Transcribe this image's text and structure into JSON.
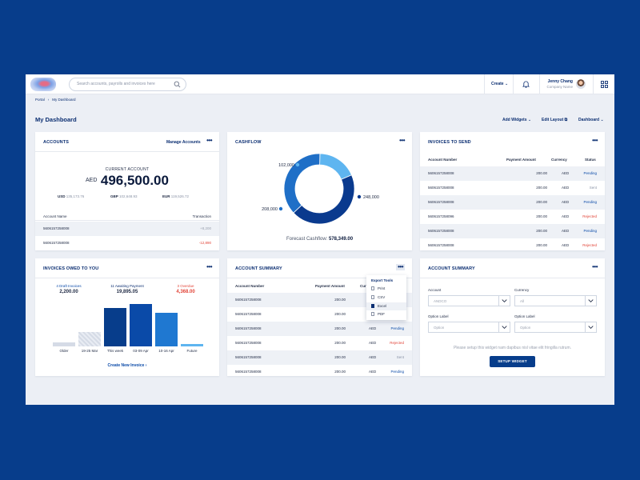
{
  "topbar": {
    "search_placeholder": "Search accounts, payrolls and invoices here",
    "create_label": "Create",
    "user_name": "Jenny Chang",
    "company_name": "Company Name"
  },
  "breadcrumb": [
    "Portal",
    "My Dashboard"
  ],
  "page": {
    "title": "My Dashboard",
    "actions": {
      "add_widgets": "Add Widgets",
      "edit_layout": "Edit Layout",
      "dashboard": "Dashboard"
    }
  },
  "accounts": {
    "title": "ACCOUNTS",
    "manage": "Manage Accounts",
    "current_label": "CURRENT ACCOUNT",
    "currency": "AED",
    "amount": "496,500.00",
    "fx": [
      {
        "cur": "USD",
        "val": "135,173.76"
      },
      {
        "cur": "GBP",
        "val": "102,648.93"
      },
      {
        "cur": "EUR",
        "val": "119,526.72"
      }
    ],
    "col_account": "Account Name",
    "col_transaction": "Transaction",
    "rows": [
      {
        "name": "5606157258008",
        "value": "+8,200"
      },
      {
        "name": "5606157258008",
        "value": "-12,890"
      }
    ]
  },
  "cashflow": {
    "title": "CASHFLOW",
    "forecast_label": "Forecast Cashflow:",
    "forecast_value": "578,349.00",
    "chart_data": {
      "type": "pie",
      "title": "CASHFLOW",
      "categories": [
        "102,000",
        "248,000",
        "208,000"
      ],
      "values": [
        102000,
        248000,
        208000
      ],
      "colors": [
        "#5eb5f0",
        "#0a3a8e",
        "#1f6fc7"
      ]
    }
  },
  "invoices_send": {
    "title": "INVOICES TO SEND",
    "cols": [
      "Account Number",
      "Payment Amount",
      "Currency",
      "Status"
    ],
    "rows": [
      {
        "acct": "5606157258008",
        "amt": "200.00",
        "cur": "AED",
        "status": "Pending"
      },
      {
        "acct": "5606157258008",
        "amt": "200.00",
        "cur": "AED",
        "status": "Sent"
      },
      {
        "acct": "5606157258008",
        "amt": "200.00",
        "cur": "AED",
        "status": "Pending"
      },
      {
        "acct": "5606157258096",
        "amt": "200.00",
        "cur": "AED",
        "status": "Rejected"
      },
      {
        "acct": "5606157258008",
        "amt": "200.00",
        "cur": "AED",
        "status": "Pending"
      },
      {
        "acct": "5606157258008",
        "amt": "200.00",
        "cur": "AED",
        "status": "Rejected"
      }
    ]
  },
  "invoices_owed": {
    "title": "INVOICES OWED TO YOU",
    "stats": [
      {
        "label": "4 Draft Invoices",
        "value": "2,200.00",
        "color": "#0a4aa8"
      },
      {
        "label": "11 Awaiting Payment",
        "value": "19,895.05",
        "color": "#0c2f72"
      },
      {
        "label": "3 Overdue",
        "value": "4,368.00",
        "color": "#e2463a"
      }
    ],
    "create_link": "Create New Invoice",
    "chart_data": {
      "type": "bar",
      "categories": [
        "Older",
        "19-25 Mar",
        "This week",
        "03-09 Apr",
        "10-16 Apr",
        "Future"
      ],
      "values": [
        5,
        18,
        47,
        52,
        41,
        3
      ],
      "ylim": [
        0,
        55
      ],
      "colors": [
        "#d5dbe6",
        "#cfd6e2",
        "#073d8b",
        "#0a4aa8",
        "#1f78d1",
        "#5eb5f0"
      ]
    }
  },
  "account_summary": {
    "title": "ACCOUNT SUMMARY",
    "cols": [
      "Account Number",
      "Payment Amount",
      "Currency",
      "Status"
    ],
    "cur_header_short": "Curr",
    "rows": [
      {
        "acct": "5606157258008",
        "amt": "200.00",
        "cur": "AED",
        "status": "Pending"
      },
      {
        "acct": "5606157258008",
        "amt": "200.00",
        "cur": "AED",
        "status": "Pending"
      },
      {
        "acct": "5606157258008",
        "amt": "200.00",
        "cur": "AED",
        "status": "Pending"
      },
      {
        "acct": "5606157258008",
        "amt": "200.00",
        "cur": "AED",
        "status": "Rejected"
      },
      {
        "acct": "5606157258008",
        "amt": "200.00",
        "cur": "AED",
        "status": "Sent"
      },
      {
        "acct": "5606157258008",
        "amt": "200.00",
        "cur": "AED",
        "status": "Pending"
      }
    ],
    "menu": {
      "title": "Export Tools",
      "items": [
        "Print",
        "CSV",
        "Excel",
        "PDF"
      ]
    }
  },
  "account_summary_2": {
    "title": "ACCOUNT SUMMARY",
    "account_label": "Account",
    "account_value": "ANDCO",
    "currency_label": "Currency",
    "currency_value": "All",
    "option1_label": "Option Label",
    "option1_value": "Option",
    "option2_label": "Option Label",
    "option2_value": "Option",
    "help_text": "Please setup this widget nam dapibus nisl vitae elit fringilla rutrum.",
    "button": "SETUP WIDGET"
  }
}
